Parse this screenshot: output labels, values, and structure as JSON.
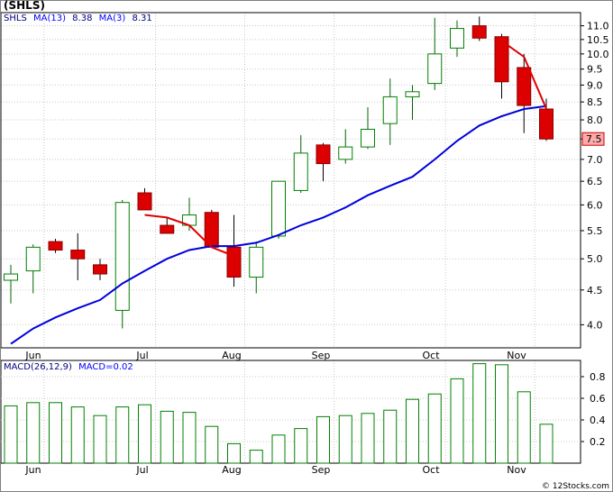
{
  "title": "(SHLS)",
  "footer": "© 12Stocks.com",
  "colors": {
    "up": "#008000",
    "down": "#dd0000",
    "ma_fast": "#dd0000",
    "ma_slow": "#0000dd",
    "grid": "#c8c8c8",
    "legend_text": "#000080"
  },
  "price_legend": {
    "symbol": "SHLS",
    "ma13_label": "MA(13)",
    "ma13_value": "8.38",
    "ma3_label": "MA(3)",
    "ma3_value": "8.31"
  },
  "macd_legend": {
    "label": "MACD(26,12,9)",
    "macd_label": "MACD=0.02"
  },
  "chart_data": [
    {
      "type": "candlestick",
      "scale": "log",
      "ylim": [
        3.7,
        11.5
      ],
      "y_ticks": [
        "4.0",
        "4.5",
        "5.0",
        "5.5",
        "6.0",
        "6.5",
        "7.0",
        "7.5",
        "8.0",
        "8.5",
        "9.0",
        "9.5",
        "10.0",
        "10.5",
        "11.0"
      ],
      "x_tick_labels": [
        "Jun",
        "Jul",
        "Aug",
        "Sep",
        "Oct",
        "Nov"
      ],
      "x_tick_index": [
        1,
        6,
        10,
        14,
        19,
        23
      ],
      "last_price": "7.5",
      "candles": [
        {
          "o": 4.65,
          "h": 4.9,
          "l": 4.3,
          "c": 4.75
        },
        {
          "o": 4.8,
          "h": 5.25,
          "l": 4.45,
          "c": 5.2
        },
        {
          "o": 5.3,
          "h": 5.35,
          "l": 5.1,
          "c": 5.15
        },
        {
          "o": 5.15,
          "h": 5.45,
          "l": 4.65,
          "c": 5.0
        },
        {
          "o": 4.9,
          "h": 5.0,
          "l": 4.65,
          "c": 4.75
        },
        {
          "o": 4.2,
          "h": 6.1,
          "l": 3.95,
          "c": 6.05
        },
        {
          "o": 6.25,
          "h": 6.35,
          "l": 5.9,
          "c": 5.9
        },
        {
          "o": 5.6,
          "h": 5.75,
          "l": 5.45,
          "c": 5.45
        },
        {
          "o": 5.6,
          "h": 6.15,
          "l": 5.5,
          "c": 5.8
        },
        {
          "o": 5.85,
          "h": 5.9,
          "l": 5.2,
          "c": 5.2
        },
        {
          "o": 5.2,
          "h": 5.8,
          "l": 4.55,
          "c": 4.7
        },
        {
          "o": 4.7,
          "h": 5.3,
          "l": 4.45,
          "c": 5.2
        },
        {
          "o": 5.4,
          "h": 6.5,
          "l": 5.35,
          "c": 6.5
        },
        {
          "o": 6.3,
          "h": 7.6,
          "l": 6.25,
          "c": 7.15
        },
        {
          "o": 7.35,
          "h": 7.4,
          "l": 6.5,
          "c": 6.9
        },
        {
          "o": 7.0,
          "h": 7.75,
          "l": 6.9,
          "c": 7.3
        },
        {
          "o": 7.3,
          "h": 8.35,
          "l": 7.25,
          "c": 7.75
        },
        {
          "o": 7.9,
          "h": 9.2,
          "l": 7.35,
          "c": 8.65
        },
        {
          "o": 8.65,
          "h": 9.0,
          "l": 8.0,
          "c": 8.8
        },
        {
          "o": 9.05,
          "h": 11.3,
          "l": 8.85,
          "c": 10.0
        },
        {
          "o": 10.2,
          "h": 11.2,
          "l": 9.9,
          "c": 10.9
        },
        {
          "o": 11.0,
          "h": 11.35,
          "l": 10.45,
          "c": 10.55
        },
        {
          "o": 10.6,
          "h": 10.7,
          "l": 8.6,
          "c": 9.1
        },
        {
          "o": 9.55,
          "h": 10.0,
          "l": 7.65,
          "c": 8.4
        },
        {
          "o": 8.3,
          "h": 8.6,
          "l": 7.45,
          "c": 7.5
        }
      ],
      "series": [
        {
          "name": "MA(13)",
          "color": "#0000dd",
          "points": [
            [
              0,
              3.75
            ],
            [
              1,
              3.95
            ],
            [
              2,
              4.1
            ],
            [
              3,
              4.23
            ],
            [
              4,
              4.35
            ],
            [
              5,
              4.6
            ],
            [
              6,
              4.8
            ],
            [
              7,
              5.0
            ],
            [
              8,
              5.15
            ],
            [
              9,
              5.22
            ],
            [
              10,
              5.22
            ],
            [
              11,
              5.28
            ],
            [
              12,
              5.42
            ],
            [
              13,
              5.6
            ],
            [
              14,
              5.75
            ],
            [
              15,
              5.95
            ],
            [
              16,
              6.2
            ],
            [
              17,
              6.4
            ],
            [
              18,
              6.6
            ],
            [
              19,
              7.0
            ],
            [
              20,
              7.45
            ],
            [
              21,
              7.85
            ],
            [
              22,
              8.1
            ],
            [
              23,
              8.3
            ],
            [
              24,
              8.38
            ]
          ]
        },
        {
          "name": "MA(3)",
          "color": "#dd0000",
          "points": [
            [
              6,
              5.8
            ],
            [
              7,
              5.75
            ],
            [
              8,
              5.6
            ],
            [
              9,
              5.2
            ],
            [
              10,
              5.05
            ],
            [
              22,
              10.45
            ],
            [
              23,
              9.9
            ],
            [
              24,
              8.31
            ]
          ]
        }
      ]
    },
    {
      "type": "bar",
      "ylim": [
        0.0,
        0.95
      ],
      "y_ticks": [
        "0.2",
        "0.4",
        "0.6",
        "0.8"
      ],
      "x_tick_labels": [
        "Jun",
        "Jul",
        "Aug",
        "Sep",
        "Oct",
        "Nov"
      ],
      "values": [
        0.53,
        0.56,
        0.56,
        0.52,
        0.44,
        0.52,
        0.54,
        0.48,
        0.47,
        0.34,
        0.18,
        0.12,
        0.26,
        0.32,
        0.43,
        0.44,
        0.46,
        0.49,
        0.59,
        0.64,
        0.78,
        0.92,
        0.91,
        0.66,
        0.36
      ]
    }
  ]
}
